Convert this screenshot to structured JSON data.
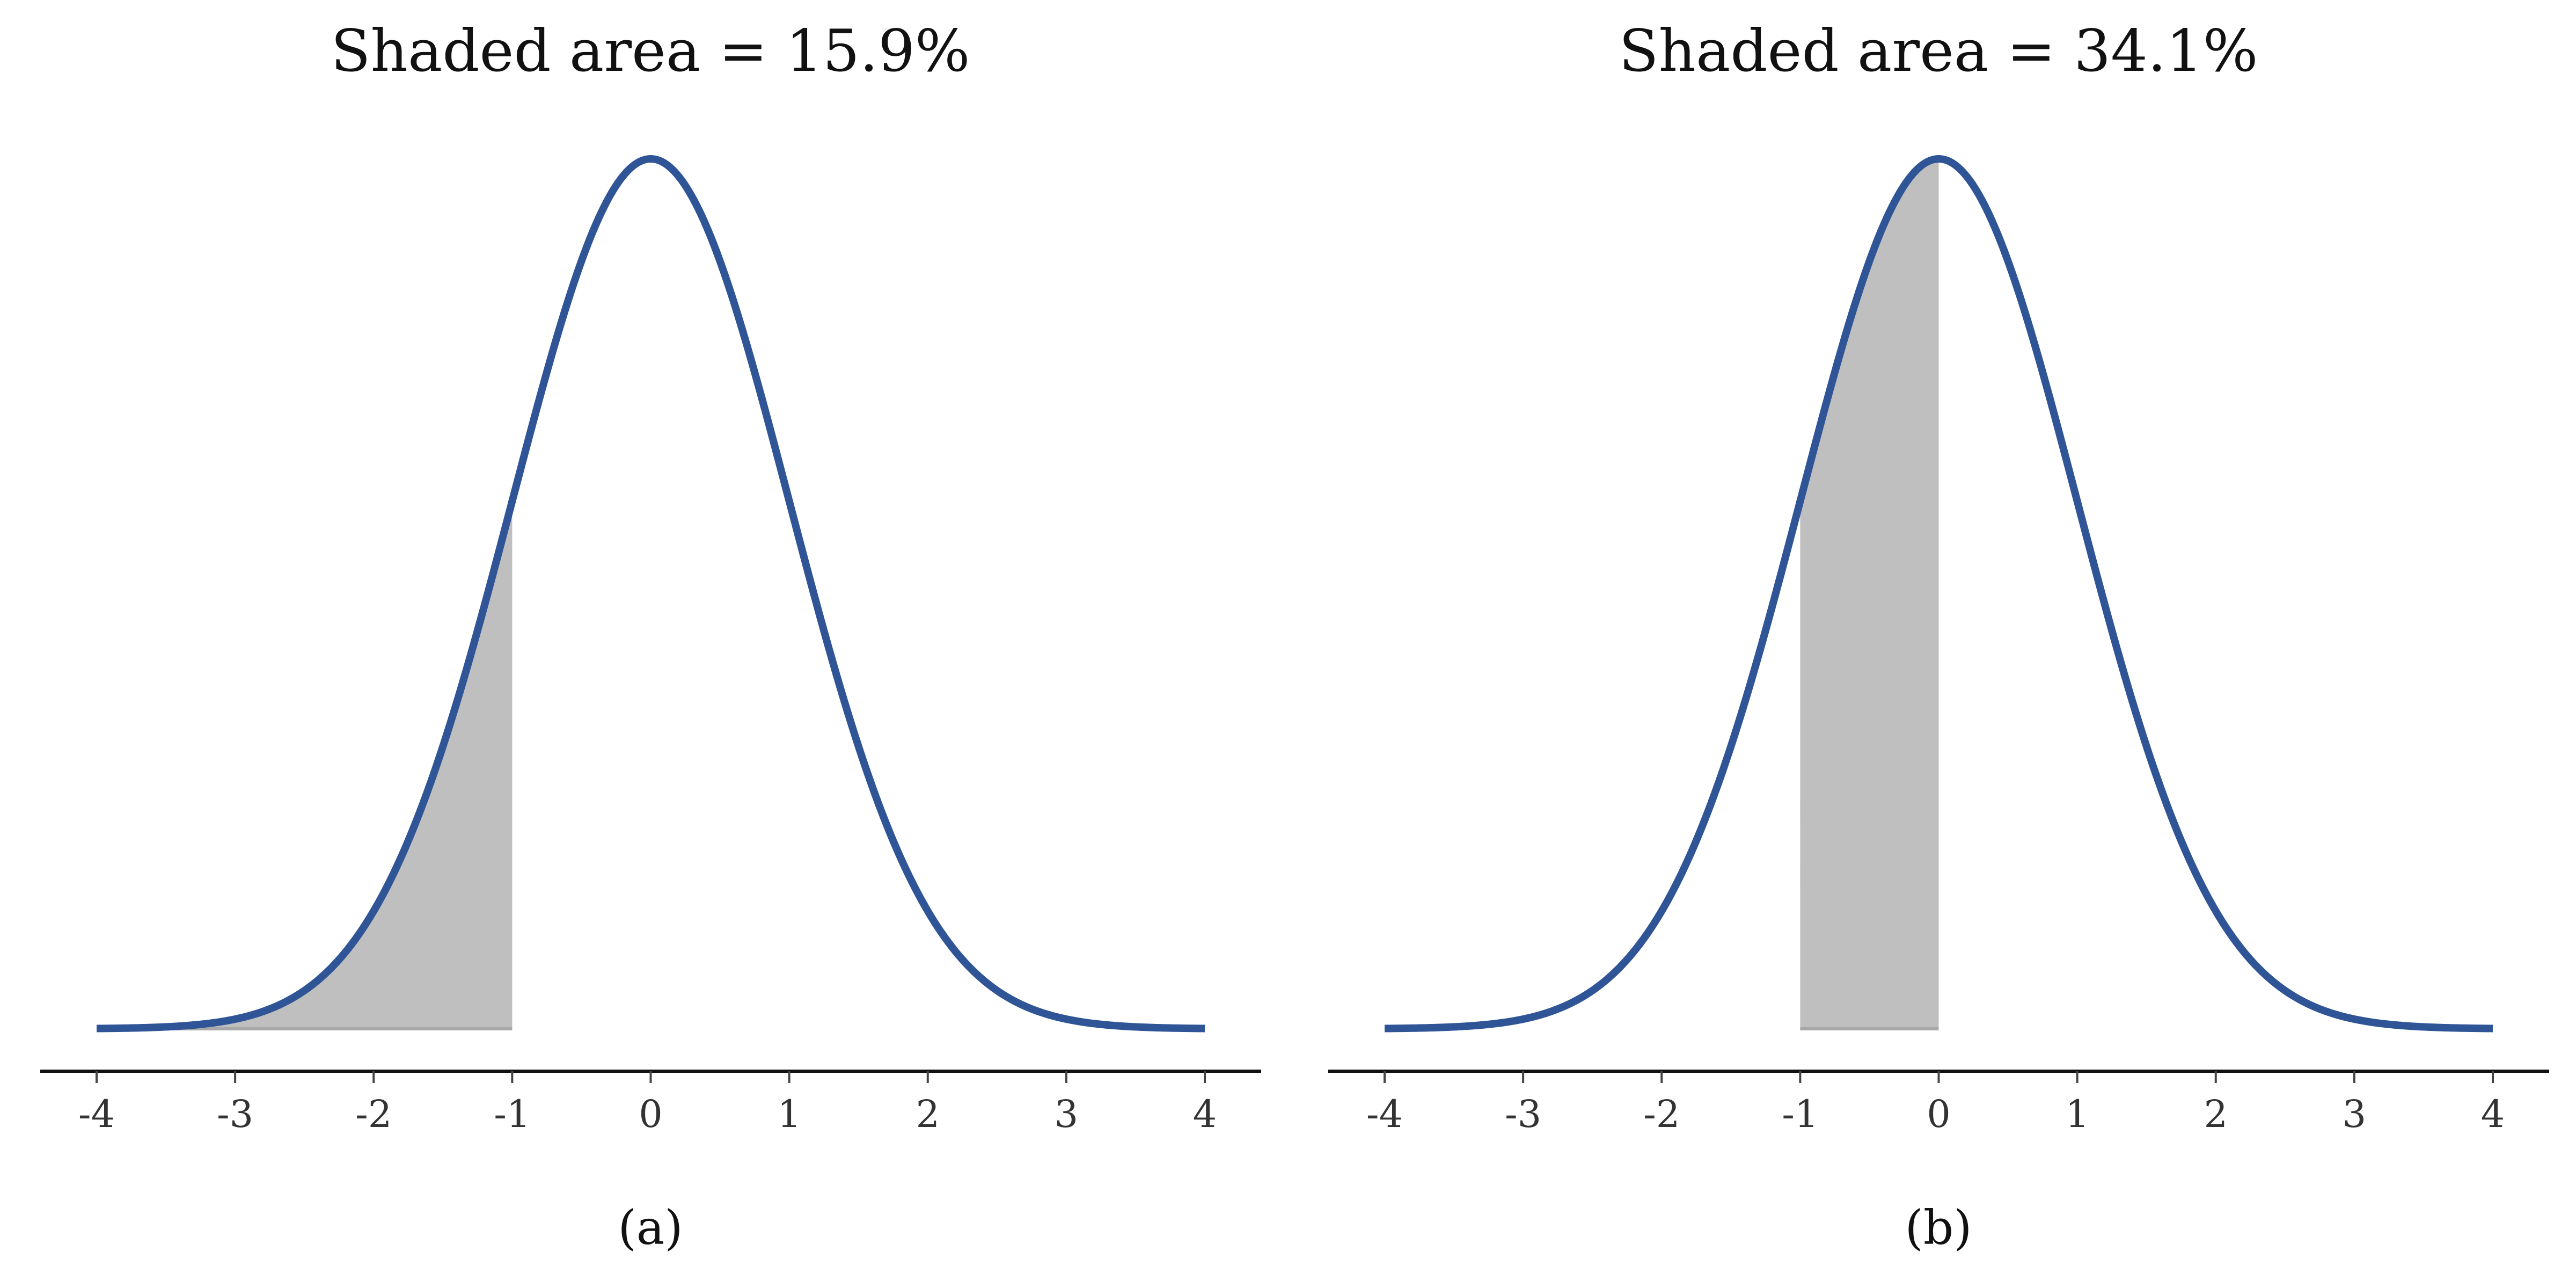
{
  "colors": {
    "curve": "#2F5597",
    "shade": "#BFBFBF",
    "shade_edge": "#A8A8A8",
    "axis": "#111111"
  },
  "chart_data": [
    {
      "type": "area",
      "title": "Shaded area = 15.9%",
      "caption": "(a)",
      "function": "standard normal density",
      "xlim": [
        -4,
        4
      ],
      "x_ticks": [
        -4,
        -3,
        -2,
        -1,
        0,
        1,
        2,
        3,
        4
      ],
      "x_tick_labels": [
        "-4",
        "-3",
        "-2",
        "-1",
        "0",
        "1",
        "2",
        "3",
        "4"
      ],
      "shaded_interval": [
        -4,
        -1
      ],
      "shaded_area_percent": 15.9,
      "grid": false
    },
    {
      "type": "area",
      "title": "Shaded area = 34.1%",
      "caption": "(b)",
      "function": "standard normal density",
      "xlim": [
        -4,
        4
      ],
      "x_ticks": [
        -4,
        -3,
        -2,
        -1,
        0,
        1,
        2,
        3,
        4
      ],
      "x_tick_labels": [
        "-4",
        "-3",
        "-2",
        "-1",
        "0",
        "1",
        "2",
        "3",
        "4"
      ],
      "shaded_interval": [
        -1,
        0
      ],
      "shaded_area_percent": 34.1,
      "grid": false
    }
  ]
}
